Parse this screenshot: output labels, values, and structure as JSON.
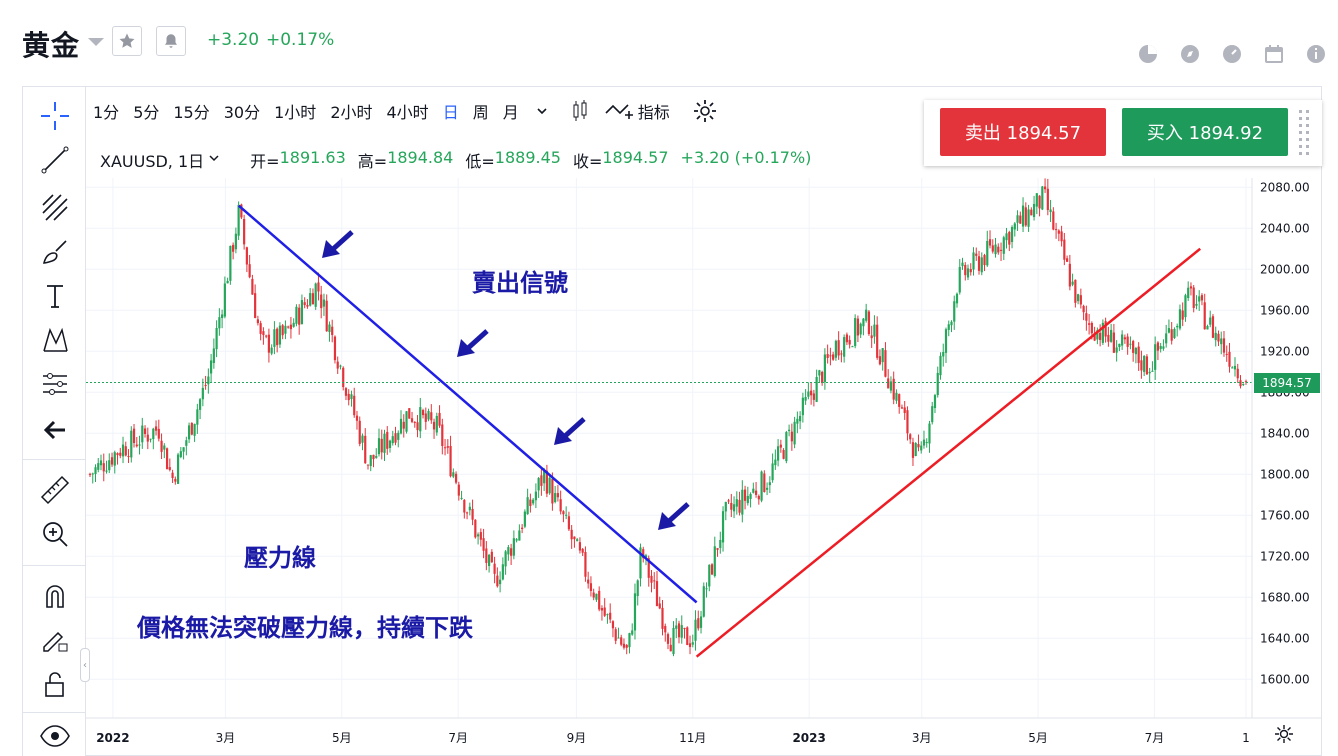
{
  "header": {
    "symbol": "黄金",
    "change_abs": "+3.20",
    "change_pct": "+0.17%",
    "right_icons": [
      "pie-chart-icon",
      "compass-icon",
      "clock-icon",
      "calendar-icon",
      "info-icon"
    ]
  },
  "toolbar": {
    "intervals": [
      "1分",
      "5分",
      "15分",
      "30分",
      "1小时",
      "2小时",
      "4小时",
      "日",
      "周",
      "月"
    ],
    "active_interval": "日",
    "indicators_label": "指标"
  },
  "legend": {
    "symbol_interval": "XAUUSD, 1日",
    "open_label": "开=",
    "open": "1891.63",
    "high_label": "高=",
    "high": "1894.84",
    "low_label": "低=",
    "low": "1889.45",
    "close_label": "收=",
    "close": "1894.57",
    "change": "+3.20 (+0.17%)"
  },
  "trade": {
    "sell_label": "卖出 1894.57",
    "buy_label": "买入 1894.92"
  },
  "annotations": {
    "sell_signal": "賣出信號",
    "resistance_line": "壓力線",
    "explanation": "價格無法突破壓力線，持續下跌"
  },
  "colors": {
    "up": "#26a65b",
    "down": "#e3343b",
    "resistance_line": "#1f1fe6",
    "support_line": "#ee1c24",
    "arrows": "#1a1aa6",
    "accent": "#2962ff"
  },
  "chart_data": {
    "type": "candlestick",
    "symbol": "XAUUSD",
    "interval": "1日",
    "last_price": "1894.57",
    "ylim": [
      1580,
      2100
    ],
    "y_ticks": [
      "2080.00",
      "2040.00",
      "2000.00",
      "1960.00",
      "1920.00",
      "1880.00",
      "1840.00",
      "1800.00",
      "1760.00",
      "1720.00",
      "1680.00",
      "1640.00",
      "1600.00"
    ],
    "x_ticks": [
      "2022",
      "3月",
      "5月",
      "7月",
      "9月",
      "11月",
      "2023",
      "3月",
      "5月",
      "7月",
      "1"
    ],
    "close_path": [
      {
        "x": "2021-12-20",
        "y": 1800
      },
      {
        "x": "2022-01-05",
        "y": 1825
      },
      {
        "x": "2022-01-25",
        "y": 1845
      },
      {
        "x": "2022-02-01",
        "y": 1795
      },
      {
        "x": "2022-02-20",
        "y": 1895
      },
      {
        "x": "2022-03-08",
        "y": 2055
      },
      {
        "x": "2022-03-20",
        "y": 1925
      },
      {
        "x": "2022-04-01",
        "y": 1935
      },
      {
        "x": "2022-04-18",
        "y": 1985
      },
      {
        "x": "2022-05-15",
        "y": 1810
      },
      {
        "x": "2022-06-05",
        "y": 1860
      },
      {
        "x": "2022-06-20",
        "y": 1845
      },
      {
        "x": "2022-07-20",
        "y": 1695
      },
      {
        "x": "2022-08-15",
        "y": 1800
      },
      {
        "x": "2022-09-15",
        "y": 1665
      },
      {
        "x": "2022-09-28",
        "y": 1625
      },
      {
        "x": "2022-10-05",
        "y": 1725
      },
      {
        "x": "2022-10-20",
        "y": 1640
      },
      {
        "x": "2022-11-01",
        "y": 1640
      },
      {
        "x": "2022-11-18",
        "y": 1760
      },
      {
        "x": "2022-12-10",
        "y": 1795
      },
      {
        "x": "2023-01-15",
        "y": 1925
      },
      {
        "x": "2023-02-01",
        "y": 1950
      },
      {
        "x": "2023-02-28",
        "y": 1810
      },
      {
        "x": "2023-03-20",
        "y": 1990
      },
      {
        "x": "2023-04-13",
        "y": 2030
      },
      {
        "x": "2023-05-04",
        "y": 2070
      },
      {
        "x": "2023-05-25",
        "y": 1950
      },
      {
        "x": "2023-06-28",
        "y": 1905
      },
      {
        "x": "2023-07-20",
        "y": 1975
      },
      {
        "x": "2023-08-18",
        "y": 1890
      }
    ],
    "trendlines": [
      {
        "name": "壓力線",
        "from": {
          "x": "2022-03-08",
          "y": 2062
        },
        "to": {
          "x": "2022-11-03",
          "y": 1675
        }
      },
      {
        "name": "",
        "from": {
          "x": "2022-11-03",
          "y": 1622
        },
        "to": {
          "x": "2023-07-25",
          "y": 2020
        }
      }
    ]
  }
}
